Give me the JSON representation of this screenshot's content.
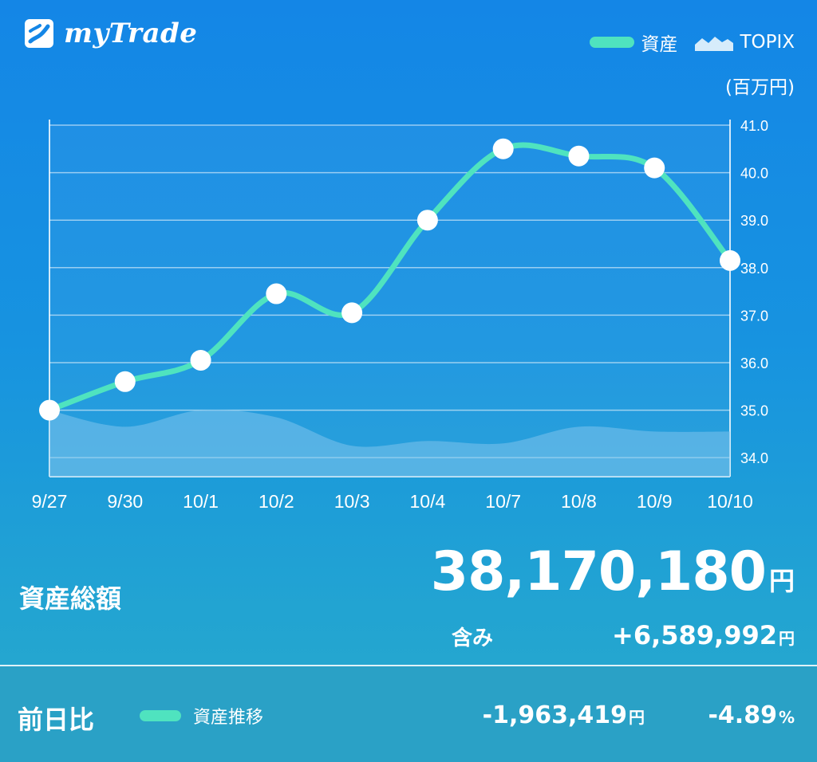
{
  "app": {
    "name": "myTrade"
  },
  "legend": {
    "asset_label": "資産",
    "topix_label": "TOPIX"
  },
  "unit_label": "(百万円)",
  "colors": {
    "asset_line": "#4fe3bf",
    "topix_fill": "#7ec3ec",
    "background_top": "#1486e6",
    "background_bottom": "#27a9cb"
  },
  "chart_data": {
    "type": "line",
    "categories": [
      "9/27",
      "9/30",
      "10/1",
      "10/2",
      "10/3",
      "10/4",
      "10/7",
      "10/8",
      "10/9",
      "10/10"
    ],
    "series": [
      {
        "name": "資産",
        "values": [
          35.0,
          35.6,
          36.05,
          37.45,
          37.05,
          39.0,
          40.5,
          40.35,
          40.1,
          38.15
        ]
      },
      {
        "name": "TOPIX",
        "style": "area",
        "values": [
          35.0,
          34.65,
          35.0,
          34.85,
          34.25,
          34.35,
          34.3,
          34.65,
          34.55,
          34.55
        ]
      }
    ],
    "y_ticks": [
      "34.0",
      "35.0",
      "36.0",
      "37.0",
      "38.0",
      "39.0",
      "40.0",
      "41.0"
    ],
    "ylim": [
      33.6,
      41.0
    ],
    "y_axis_position": "right",
    "grid": true,
    "legend_position": "top-right"
  },
  "summary": {
    "total_label": "資産総額",
    "total_value": "38,170,180",
    "total_unit": "円",
    "included_label": "含み",
    "included_value": "+6,589,992",
    "included_unit": "円"
  },
  "footer": {
    "day_label": "前日比",
    "legend_label": "資産推移",
    "change_value": "-1,963,419",
    "change_unit": "円",
    "percent_value": "-4.89",
    "percent_unit": "%"
  }
}
